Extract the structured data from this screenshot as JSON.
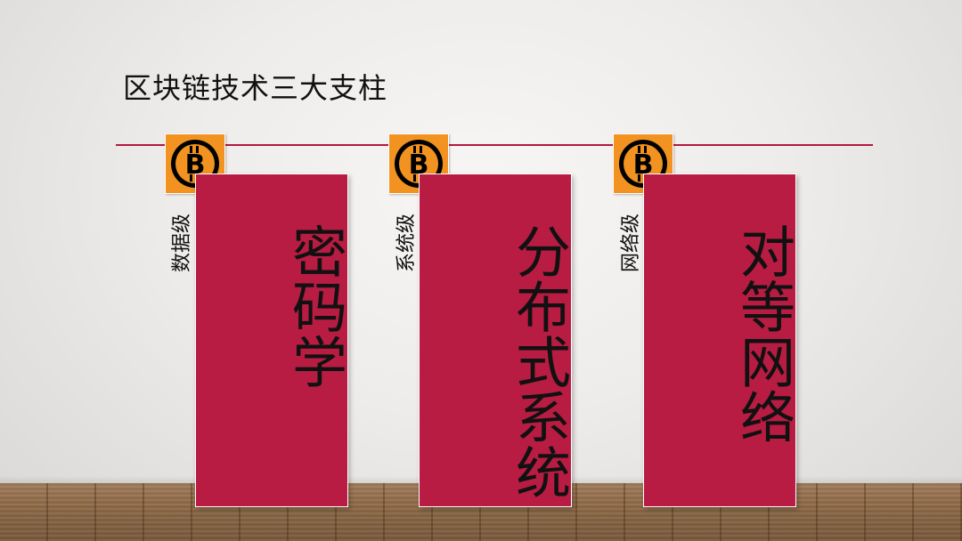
{
  "title": "区块链技术三大支柱",
  "colors": {
    "banner": "#b81c42",
    "rule": "#b5173f",
    "badge": "#f29321"
  },
  "pillars": [
    {
      "level": "数据级",
      "name": "密码学",
      "icon": "bitcoin-icon"
    },
    {
      "level": "系统级",
      "name": "分布式系统",
      "icon": "bitcoin-icon"
    },
    {
      "level": "网络级",
      "name": "对等网络",
      "icon": "bitcoin-icon"
    }
  ]
}
